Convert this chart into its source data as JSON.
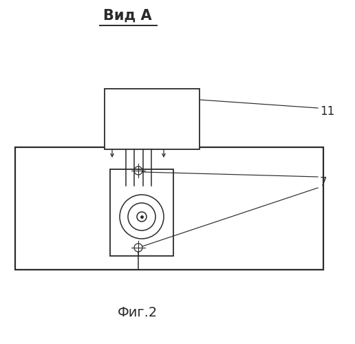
{
  "title": "Вид А",
  "caption": "Фиг.2",
  "bg_color": "#ffffff",
  "line_color": "#2a2a2a",
  "label_11": "11",
  "label_7": "7",
  "fig_width": 5.16,
  "fig_height": 5.0,
  "dpi": 100
}
